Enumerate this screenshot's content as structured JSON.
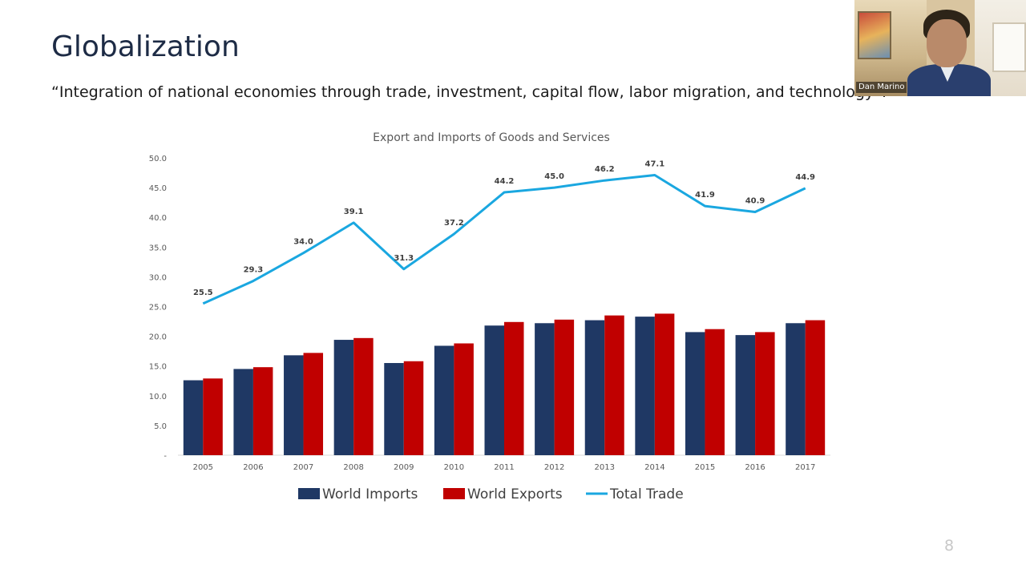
{
  "slide": {
    "title": "Globalization",
    "quote": "“Integration of national economies through trade, investment, capital flow, labor migration, and technology”.",
    "page_number": "8"
  },
  "video": {
    "participant_name": "Dan Marino"
  },
  "colors": {
    "imports": "#1f3864",
    "exports": "#c00000",
    "total": "#1aa7e0"
  },
  "chart_data": {
    "type": "bar",
    "title": "Export and Imports of Goods and Services",
    "categories": [
      "2005",
      "2006",
      "2007",
      "2008",
      "2009",
      "2010",
      "2011",
      "2012",
      "2013",
      "2014",
      "2015",
      "2016",
      "2017"
    ],
    "y_ticks": [
      "-",
      "5.0",
      "10.0",
      "15.0",
      "20.0",
      "25.0",
      "30.0",
      "35.0",
      "40.0",
      "45.0",
      "50.0"
    ],
    "ylim": [
      0,
      50
    ],
    "series": [
      {
        "name": "World Imports",
        "type": "bar",
        "values": [
          12.6,
          14.5,
          16.8,
          19.4,
          15.5,
          18.4,
          21.8,
          22.2,
          22.7,
          23.3,
          20.7,
          20.2,
          22.2
        ]
      },
      {
        "name": "World Exports",
        "type": "bar",
        "values": [
          12.9,
          14.8,
          17.2,
          19.7,
          15.8,
          18.8,
          22.4,
          22.8,
          23.5,
          23.8,
          21.2,
          20.7,
          22.7
        ]
      },
      {
        "name": "Total Trade",
        "type": "line",
        "values": [
          25.5,
          29.3,
          34.0,
          39.1,
          31.3,
          37.2,
          44.2,
          45.0,
          46.2,
          47.1,
          41.9,
          40.9,
          44.9
        ],
        "labels": [
          "25.5",
          "29.3",
          "34.0",
          "39.1",
          "31.3",
          "37.2",
          "44.2",
          "45.0",
          "46.2",
          "47.1",
          "41.9",
          "40.9",
          "44.9"
        ]
      }
    ],
    "legend": {
      "position": "bottom"
    },
    "grid": false
  }
}
